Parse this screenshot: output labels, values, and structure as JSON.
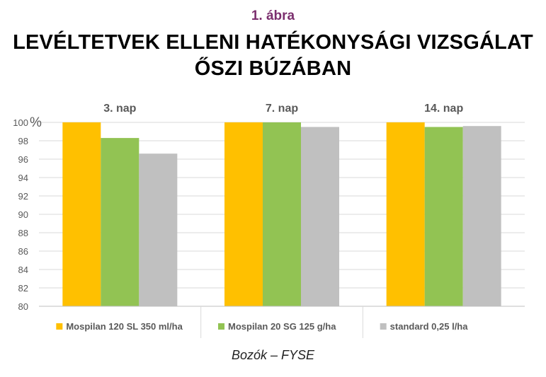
{
  "figure_label": "1. ábra",
  "title_lines": [
    "LEVÉLTETVEK ELLENI HATÉKONYSÁGI VIZSGÁLAT",
    "ŐSZI BÚZÁBAN"
  ],
  "source": "Bozók – FYSE",
  "chart_data": {
    "type": "bar",
    "categories": [
      "3. nap",
      "7. nap",
      "14. nap"
    ],
    "series": [
      {
        "name": "Mospilan 120 SL 350 ml/ha",
        "color": "#ffc000",
        "values": [
          100,
          100,
          100
        ]
      },
      {
        "name": "Mospilan 20 SG 125 g/ha",
        "color": "#92c353",
        "values": [
          98.3,
          100,
          99.5
        ]
      },
      {
        "name": "standard 0,25 l/ha",
        "color": "#c0c0c0",
        "values": [
          96.6,
          99.5,
          99.6
        ]
      }
    ],
    "ylim": [
      80,
      100
    ],
    "yticks": [
      80,
      82,
      84,
      86,
      88,
      90,
      92,
      94,
      96,
      98,
      100
    ],
    "y_unit": "%",
    "grid": true,
    "legend_position": "bottom"
  }
}
